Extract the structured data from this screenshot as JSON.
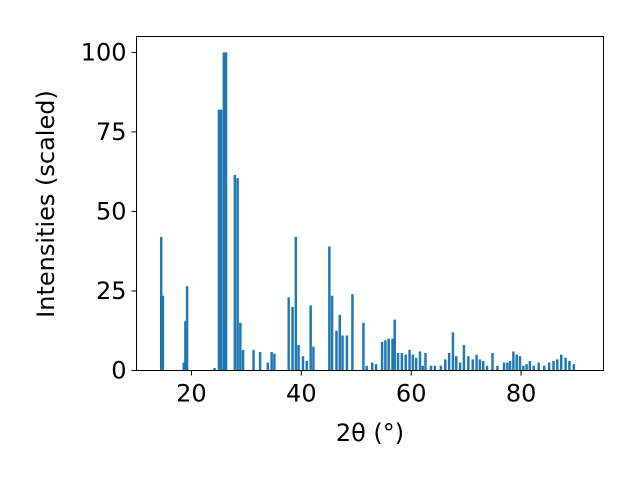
{
  "chart_data": {
    "type": "bar",
    "xlabel": "2θ (°)",
    "ylabel": "Intensities (scaled)",
    "xlim": [
      10,
      95
    ],
    "ylim": [
      0,
      105
    ],
    "xticks": [
      20,
      40,
      60,
      80
    ],
    "yticks": [
      0,
      25,
      50,
      75,
      100
    ],
    "bar_color": "#1f77b4",
    "bar_width": 0.45,
    "grid": false,
    "x": [
      14.5,
      14.8,
      18.6,
      18.9,
      19.2,
      24.2,
      25.0,
      25.4,
      25.9,
      26.3,
      27.9,
      28.4,
      28.9,
      29.4,
      31.3,
      32.5,
      33.9,
      34.6,
      35.1,
      37.7,
      38.4,
      39.0,
      39.5,
      40.3,
      41.0,
      41.7,
      42.2,
      45.1,
      45.6,
      46.4,
      47.0,
      47.5,
      48.3,
      49.3,
      51.3,
      51.9,
      52.9,
      53.6,
      54.7,
      55.3,
      55.9,
      56.6,
      57.0,
      57.6,
      58.3,
      59.0,
      59.7,
      60.3,
      60.9,
      61.6,
      62.1,
      62.6,
      63.6,
      64.3,
      65.4,
      66.2,
      66.9,
      67.6,
      68.2,
      68.9,
      69.6,
      70.4,
      71.2,
      71.9,
      72.5,
      73.1,
      73.8,
      74.8,
      75.7,
      76.9,
      77.5,
      78.0,
      78.6,
      79.2,
      79.8,
      80.4,
      81.0,
      81.6,
      82.3,
      83.2,
      84.2,
      85.1,
      85.9,
      86.6,
      87.3,
      88.1,
      88.8,
      89.6
    ],
    "y": [
      42,
      23.5,
      2.5,
      15.5,
      26.5,
      0.8,
      82,
      82,
      100,
      100,
      61.5,
      60.5,
      15,
      6.5,
      6.5,
      5.8,
      2.5,
      5.8,
      5.3,
      23,
      20,
      42,
      8,
      4.5,
      3,
      20.5,
      7.5,
      39,
      23.5,
      12.5,
      17.5,
      11,
      11,
      24,
      15,
      1.5,
      2.5,
      2,
      9,
      9.5,
      10,
      10,
      16,
      5.5,
      5.5,
      5,
      6.5,
      5,
      4,
      6,
      1.5,
      5.5,
      1.5,
      1.5,
      1.5,
      3.5,
      5.5,
      12,
      4.5,
      2.5,
      8,
      4.5,
      3.5,
      5,
      3.5,
      3,
      1.5,
      5.5,
      1.5,
      2.5,
      2.5,
      3,
      6,
      5,
      4.5,
      1.5,
      2,
      3,
      1.5,
      2.5,
      1.5,
      2.5,
      3,
      3.5,
      5,
      4,
      3,
      2
    ]
  }
}
